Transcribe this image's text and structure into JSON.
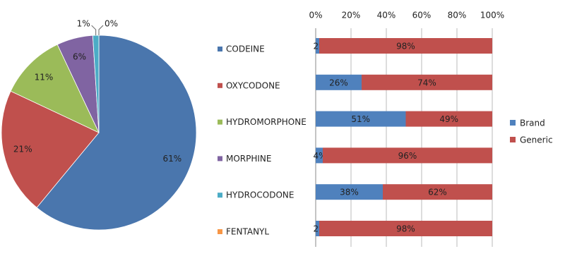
{
  "chart_data": [
    {
      "type": "pie",
      "categories": [
        "CODEINE",
        "OXYCODONE",
        "HYDROMORPHONE",
        "MORPHINE",
        "HYDROCODONE",
        "FENTANYL"
      ],
      "values": [
        61,
        21,
        11,
        6,
        1,
        0
      ],
      "value_labels": [
        "61%",
        "21%",
        "11%",
        "6%",
        "1%",
        "0%"
      ],
      "colors": [
        "#4a76ad",
        "#c0504d",
        "#9bbb59",
        "#8064a2",
        "#4bacc6",
        "#f79646"
      ]
    },
    {
      "type": "stacked-bar-horizontal",
      "series": [
        {
          "name": "Brand",
          "color": "#4f81bd",
          "values": [
            2,
            26,
            51,
            4,
            38,
            2
          ],
          "value_labels": [
            "2%",
            "26%",
            "51%",
            "4%",
            "38%",
            "2%"
          ]
        },
        {
          "name": "Generic",
          "color": "#c0504d",
          "values": [
            98,
            74,
            49,
            96,
            62,
            98
          ],
          "value_labels": [
            "98%",
            "74%",
            "49%",
            "96%",
            "62%",
            "98%"
          ]
        }
      ],
      "xlim": [
        0,
        100
      ],
      "xticks": [
        {
          "value": 0,
          "label": "0%"
        },
        {
          "value": 20,
          "label": "20%"
        },
        {
          "value": 40,
          "label": "40%"
        },
        {
          "value": 60,
          "label": "60%"
        },
        {
          "value": 80,
          "label": "80%"
        },
        {
          "value": 100,
          "label": "100%"
        }
      ],
      "grid": true
    }
  ]
}
